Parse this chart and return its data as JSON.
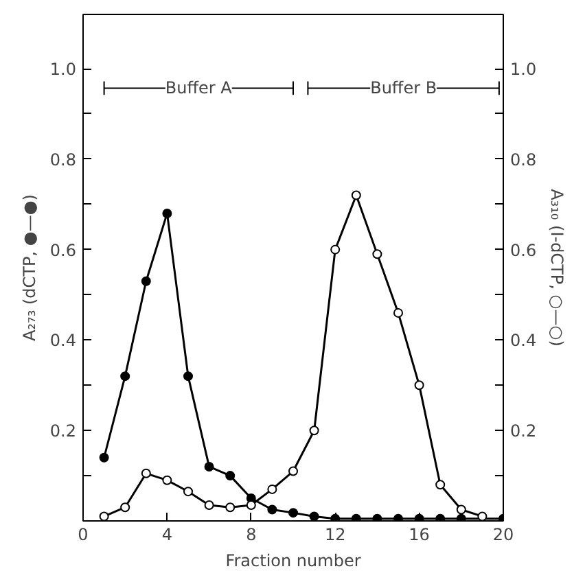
{
  "chart_data": {
    "type": "line",
    "xlabel": "Fraction number",
    "ylabel": "A₂₇₃ (dCTP, ●—●)",
    "y2label": "A₃₁₀ (I-dCTP, ○—○)",
    "x": [
      1,
      2,
      3,
      4,
      5,
      6,
      7,
      8,
      9,
      10,
      11,
      12,
      13,
      14,
      15,
      16,
      17,
      18,
      19,
      20
    ],
    "series": [
      {
        "color": "#000000",
        "values": [
          0.14,
          0.32,
          0.53,
          0.68,
          0.32,
          0.12,
          0.1,
          0.05,
          0.025,
          0.018,
          0.01,
          0.005,
          0.005,
          0.005,
          0.005,
          0.005,
          0.005,
          0.005,
          null,
          0.005
        ]
      },
      {
        "color": "#000000",
        "axis": "y2",
        "values": [
          0.01,
          0.03,
          0.105,
          0.09,
          0.065,
          0.035,
          0.03,
          0.035,
          0.07,
          0.11,
          0.2,
          0.6,
          0.72,
          0.59,
          0.46,
          0.3,
          0.08,
          0.025,
          0.01,
          null
        ]
      },
      {
        "name": "Buffer A",
        "color": "#000000",
        "marker": "none",
        "x": [
          1,
          10
        ],
        "values": [
          0.957,
          0.957
        ],
        "errors": [
          0.015,
          0.015
        ]
      },
      {
        "name": "Buffer B",
        "color": "#000000",
        "marker": "none",
        "x": [
          10.7,
          19.8
        ],
        "values": [
          0.957,
          0.957
        ],
        "errors": [
          0.015,
          0.015
        ]
      }
    ],
    "xlim": [
      0,
      20
    ],
    "xticks": [
      0,
      4,
      8,
      12,
      16,
      20
    ],
    "ylim": [
      0,
      1.12
    ],
    "yticks": [
      {
        "value": 0.1,
        "label": null
      },
      0.2,
      {
        "value": 0.3,
        "label": null
      },
      0.4,
      {
        "value": 0.5,
        "label": null
      },
      0.6,
      {
        "value": 0.7,
        "label": null
      },
      0.8,
      {
        "value": 0.9,
        "label": null
      },
      {
        "value": 1,
        "label": "1.0"
      }
    ],
    "y2lim": [
      0,
      1.12
    ],
    "y2ticks": [
      {
        "value": 0.1,
        "label": null
      },
      0.2,
      {
        "value": 0.3,
        "label": null
      },
      0.4,
      {
        "value": 0.5,
        "label": null
      },
      0.6,
      {
        "value": 0.7,
        "label": null
      },
      0.8,
      {
        "value": 0.9,
        "label": null
      },
      {
        "value": 1,
        "label": "1.0"
      }
    ],
    "grid": false,
    "marker": "circle",
    "line_style": "solid"
  }
}
